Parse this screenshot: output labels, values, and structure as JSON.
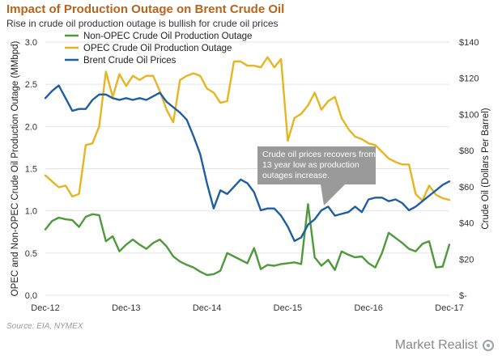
{
  "header": {
    "title": "Impact of Production Outage on Brent Crude Oil",
    "subtitle": "Rise in crude oil production outage is bullish for crude oil prices"
  },
  "footer": {
    "source": "Source: EIA, NYMEX",
    "brand": "Market Realist"
  },
  "colors": {
    "title": "#b5651d",
    "non_opec": "#4e9a3b",
    "opec": "#e6b520",
    "brent": "#1f5fa0",
    "note_box": "#9a9a9a",
    "grid": "#e3e3e3"
  },
  "chart_data": {
    "type": "line",
    "title": "Impact of Production Outage on Brent Crude Oil",
    "subtitle": "Rise in crude oil production outage is bullish for crude oil prices",
    "ylabel_left": "OPEC and Non-OPEC Crude Oil Production Outage (MMbpd)",
    "ylabel_right": "Crude Oil (Dollars Per Barrel)",
    "ylim_left": [
      0,
      3.0
    ],
    "ylim_right": [
      0,
      140
    ],
    "yticks_left": [
      "0.0",
      "0.5",
      "1.0",
      "1.5",
      "2.0",
      "2.5",
      "3.0"
    ],
    "yticks_right": [
      "$-",
      "$20",
      "$40",
      "$60",
      "$80",
      "$100",
      "$120",
      "$140"
    ],
    "xticks": [
      "Dec-12",
      "Dec-13",
      "Dec-14",
      "Dec-15",
      "Dec-16",
      "Dec-17"
    ],
    "x": [
      "Dec-12",
      "Jan-13",
      "Feb-13",
      "Mar-13",
      "Apr-13",
      "May-13",
      "Jun-13",
      "Jul-13",
      "Aug-13",
      "Sep-13",
      "Oct-13",
      "Nov-13",
      "Dec-13",
      "Jan-14",
      "Feb-14",
      "Mar-14",
      "Apr-14",
      "May-14",
      "Jun-14",
      "Jul-14",
      "Aug-14",
      "Sep-14",
      "Oct-14",
      "Nov-14",
      "Dec-14",
      "Jan-15",
      "Feb-15",
      "Mar-15",
      "Apr-15",
      "May-15",
      "Jun-15",
      "Jul-15",
      "Aug-15",
      "Sep-15",
      "Oct-15",
      "Nov-15",
      "Dec-15",
      "Jan-16",
      "Feb-16",
      "Mar-16",
      "Apr-16",
      "May-16",
      "Jun-16",
      "Jul-16",
      "Aug-16",
      "Sep-16",
      "Oct-16",
      "Nov-16",
      "Dec-16",
      "Jan-17",
      "Feb-17",
      "Mar-17",
      "Apr-17",
      "May-17",
      "Jun-17",
      "Jul-17",
      "Aug-17",
      "Sep-17",
      "Oct-17",
      "Nov-17",
      "Dec-17"
    ],
    "grid": true,
    "legend_position": "top-left",
    "series": [
      {
        "name": "Non-OPEC Crude Oil Production Outage",
        "axis": "left",
        "values": [
          0.78,
          0.88,
          0.92,
          0.9,
          0.89,
          0.81,
          0.93,
          0.96,
          0.95,
          0.64,
          0.7,
          0.52,
          0.6,
          0.66,
          0.6,
          0.55,
          0.62,
          0.66,
          0.58,
          0.46,
          0.4,
          0.36,
          0.33,
          0.28,
          0.24,
          0.25,
          0.29,
          0.5,
          0.46,
          0.42,
          0.38,
          0.56,
          0.31,
          0.36,
          0.35,
          0.37,
          0.38,
          0.39,
          0.37,
          1.08,
          0.45,
          0.35,
          0.42,
          0.3,
          0.52,
          0.48,
          0.45,
          0.46,
          0.38,
          0.33,
          0.5,
          0.74,
          0.68,
          0.62,
          0.55,
          0.52,
          0.61,
          0.64,
          0.33,
          0.34,
          0.6
        ]
      },
      {
        "name": "OPEC Crude Oil Production Outage",
        "axis": "left",
        "values": [
          1.42,
          1.35,
          1.28,
          1.3,
          1.17,
          1.2,
          1.78,
          1.8,
          2.0,
          2.65,
          2.35,
          2.62,
          2.48,
          2.6,
          2.55,
          2.6,
          2.6,
          2.42,
          2.2,
          2.05,
          2.55,
          2.6,
          2.63,
          2.6,
          2.45,
          2.4,
          2.28,
          2.3,
          2.77,
          2.77,
          2.72,
          2.72,
          2.7,
          2.82,
          2.7,
          2.8,
          1.83,
          2.1,
          2.15,
          2.25,
          2.4,
          2.2,
          2.3,
          2.35,
          2.1,
          1.97,
          1.88,
          1.85,
          1.8,
          1.78,
          1.7,
          1.62,
          1.58,
          1.55,
          1.55,
          1.2,
          1.12,
          1.3,
          1.19,
          1.15,
          1.13
        ]
      },
      {
        "name": "Brent Crude Oil Prices",
        "axis": "right",
        "values": [
          109,
          113,
          116,
          109,
          102,
          103,
          103,
          108,
          111,
          111,
          109,
          108,
          109,
          108,
          109,
          108,
          110,
          112,
          107,
          104,
          101,
          97,
          88,
          78,
          62,
          48,
          58,
          56,
          60,
          64,
          62,
          57,
          47,
          48,
          48,
          44,
          38,
          30,
          32,
          39,
          42,
          47,
          49,
          44,
          45,
          46,
          49,
          46,
          53,
          54,
          54,
          52,
          53,
          51,
          47,
          49,
          52,
          55,
          58,
          61,
          63
        ]
      }
    ],
    "annotations": [
      {
        "text": [
          "Crude oil prices recovers from",
          "13 year low as production",
          "outages increase."
        ]
      }
    ]
  }
}
